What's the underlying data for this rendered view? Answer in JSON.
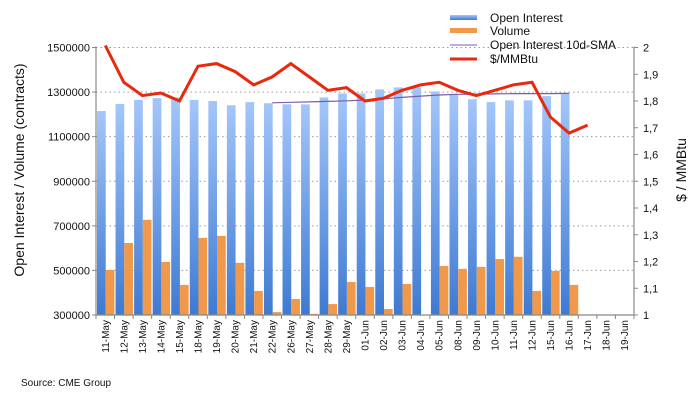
{
  "chart_data": {
    "type": "bar",
    "title": "",
    "xlabel": "",
    "ylabel": "Open Interest / Volume (contracts)",
    "y2label": "$ / MMBtu",
    "ylim": [
      300000,
      1500000
    ],
    "y2lim": [
      1,
      2
    ],
    "yticks": [
      "300000",
      "500000",
      "700000",
      "900000",
      "1100000",
      "1300000",
      "1500000"
    ],
    "y2ticks": [
      "1",
      "1,1",
      "1,2",
      "1,3",
      "1,4",
      "1,5",
      "1,6",
      "1,7",
      "1,8",
      "1,9",
      "2"
    ],
    "grid": true,
    "legend_position": "top-right",
    "categories": [
      "11-May",
      "12-May",
      "13-May",
      "14-May",
      "15-May",
      "18-May",
      "19-May",
      "20-May",
      "21-May",
      "22-May",
      "26-May",
      "27-May",
      "28-May",
      "29-May",
      "01-Jun",
      "02-Jun",
      "03-Jun",
      "04-Jun",
      "05-Jun",
      "08-Jun",
      "09-Jun",
      "10-Jun",
      "11-Jun",
      "12-Jun",
      "15-Jun",
      "16-Jun",
      "17-Jun",
      "18-Jun",
      "19-Jun"
    ],
    "series": [
      {
        "name": "Open Interest",
        "type": "bar",
        "axis": "left",
        "color": "#4a86d8",
        "values": [
          1215000,
          1247000,
          1265000,
          1273000,
          1276000,
          1265000,
          1260000,
          1241000,
          1255000,
          1250000,
          1245000,
          1245000,
          1276000,
          1294000,
          1294000,
          1312000,
          1321000,
          1321000,
          1303000,
          1292000,
          1268000,
          1255000,
          1263000,
          1263000,
          1282000,
          1294000,
          null,
          null,
          null
        ]
      },
      {
        "name": "Volume",
        "type": "bar",
        "axis": "left",
        "color": "#f0994a",
        "values": [
          502000,
          623000,
          727000,
          538000,
          435000,
          646000,
          655000,
          534000,
          408000,
          313000,
          372000,
          305000,
          349000,
          448000,
          426000,
          327000,
          439000,
          null,
          520000,
          507000,
          516000,
          551000,
          561000,
          408000,
          498000,
          435000,
          null,
          null,
          null
        ]
      },
      {
        "name": "Open Interest 10d-SMA",
        "type": "line",
        "axis": "left",
        "color": "#7b5ea7",
        "values": [
          null,
          null,
          null,
          null,
          null,
          null,
          null,
          null,
          null,
          1252000,
          1254000,
          1256000,
          1258000,
          1261000,
          1264000,
          1270000,
          1276000,
          1282000,
          1287000,
          1290000,
          1291000,
          1292000,
          1293000,
          1293000,
          1293000,
          1294000,
          null,
          null,
          null
        ]
      },
      {
        "name": "$/MMBtu",
        "type": "line",
        "axis": "right",
        "color": "#e8290e",
        "values": [
          2.01,
          1.87,
          1.82,
          1.83,
          1.8,
          1.93,
          1.94,
          1.91,
          1.86,
          1.89,
          1.94,
          1.89,
          1.84,
          1.85,
          1.8,
          1.81,
          1.84,
          1.86,
          1.87,
          1.84,
          1.82,
          1.84,
          1.86,
          1.87,
          1.74,
          1.68,
          1.71,
          null,
          null
        ]
      }
    ]
  },
  "source": "Source: CME Group"
}
